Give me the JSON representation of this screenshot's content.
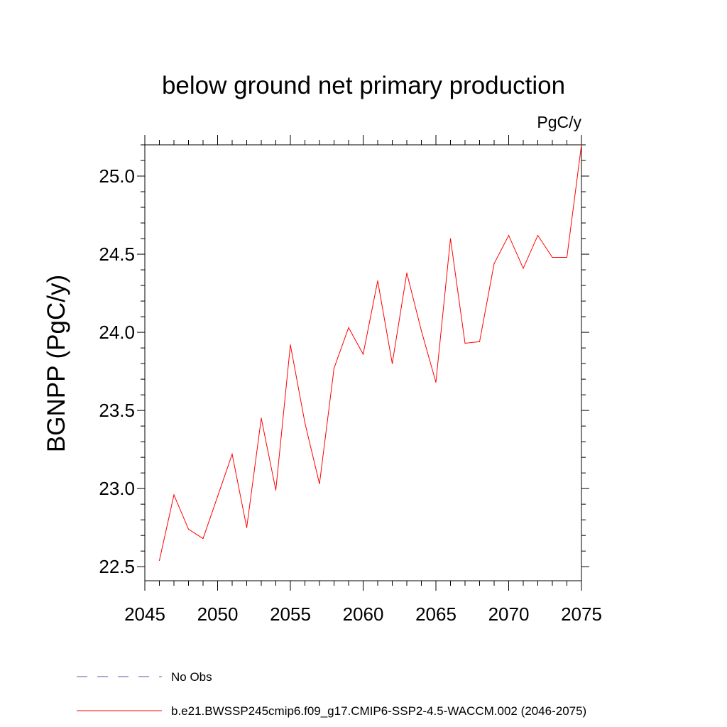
{
  "chart_data": {
    "type": "line",
    "title": "below ground net primary production",
    "units_label": "PgC/y",
    "ylabel": "BGNPP  (PgC/y)",
    "xlabel": "",
    "xlim": [
      2045,
      2075
    ],
    "ylim": [
      22.41,
      25.2
    ],
    "x_ticks": [
      "2045",
      "2050",
      "2055",
      "2060",
      "2065",
      "2070",
      "2075"
    ],
    "y_ticks": [
      "22.5",
      "23.0",
      "23.5",
      "24.0",
      "24.5",
      "25.0"
    ],
    "grid": false,
    "series": [
      {
        "name": "b.e21.BWSSP245cmip6.f09_g17.CMIP6-SSP2-4.5-WACCM.002 (2046-2075)",
        "color": "#ff0000",
        "x": [
          2046,
          2047,
          2048,
          2049,
          2050,
          2051,
          2052,
          2053,
          2054,
          2055,
          2056,
          2057,
          2058,
          2059,
          2060,
          2061,
          2062,
          2063,
          2064,
          2065,
          2066,
          2067,
          2068,
          2069,
          2070,
          2071,
          2072,
          2073,
          2074,
          2075
        ],
        "y": [
          22.54,
          22.96,
          22.74,
          22.68,
          22.95,
          23.22,
          22.75,
          23.45,
          22.99,
          23.92,
          23.42,
          23.03,
          23.77,
          24.03,
          23.86,
          24.33,
          23.8,
          24.38,
          24.01,
          23.68,
          24.6,
          23.93,
          23.94,
          24.44,
          24.62,
          24.41,
          24.62,
          24.48,
          24.48,
          25.2
        ]
      }
    ],
    "legend": [
      {
        "label": "No Obs",
        "style": "dashed",
        "color": "#5555aa"
      },
      {
        "label": "b.e21.BWSSP245cmip6.f09_g17.CMIP6-SSP2-4.5-WACCM.002 (2046-2075)",
        "style": "solid",
        "color": "#ff0000"
      }
    ]
  }
}
